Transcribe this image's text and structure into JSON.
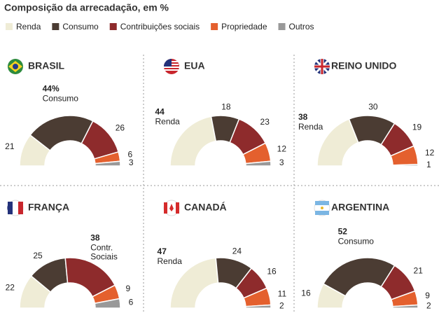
{
  "title": "Composição da arrecadação, em %",
  "chart_data": [
    {
      "type": "half-donut",
      "title": "BRASIL",
      "categories": [
        "Renda",
        "Consumo",
        "Contribuições sociais",
        "Propriedade",
        "Outros"
      ],
      "colors": [
        "#efecd6",
        "#4b3c33",
        "#8e2b2c",
        "#e4602e",
        "#999999"
      ],
      "values": [
        21,
        44,
        26,
        6,
        3
      ],
      "value_labels": [
        "21",
        "44%",
        "26",
        "6",
        "3"
      ],
      "highlight": 1
    },
    {
      "type": "half-donut",
      "title": "EUA",
      "categories": [
        "Renda",
        "Consumo",
        "Contribuições sociais",
        "Propriedade",
        "Outros"
      ],
      "colors": [
        "#efecd6",
        "#4b3c33",
        "#8e2b2c",
        "#e4602e",
        "#999999"
      ],
      "values": [
        44,
        18,
        23,
        12,
        3
      ],
      "highlight": 0
    },
    {
      "type": "half-donut",
      "title": "REINO UNIDO",
      "categories": [
        "Renda",
        "Consumo",
        "Contribuições sociais",
        "Propriedade",
        "Outros"
      ],
      "colors": [
        "#efecd6",
        "#4b3c33",
        "#8e2b2c",
        "#e4602e",
        "#999999"
      ],
      "values": [
        38,
        30,
        19,
        12,
        1
      ],
      "highlight": 0
    },
    {
      "type": "half-donut",
      "title": "FRANÇA",
      "categories": [
        "Renda",
        "Consumo",
        "Contribuições sociais",
        "Propriedade",
        "Outros"
      ],
      "colors": [
        "#efecd6",
        "#4b3c33",
        "#8e2b2c",
        "#e4602e",
        "#999999"
      ],
      "values": [
        22,
        25,
        38,
        9,
        6
      ],
      "highlight": 2,
      "callout_label": [
        "Contr.",
        "Sociais"
      ]
    },
    {
      "type": "half-donut",
      "title": "CANADÁ",
      "categories": [
        "Renda",
        "Consumo",
        "Contribuições sociais",
        "Propriedade",
        "Outros"
      ],
      "colors": [
        "#efecd6",
        "#4b3c33",
        "#8e2b2c",
        "#e4602e",
        "#999999"
      ],
      "values": [
        47,
        24,
        16,
        11,
        2
      ],
      "highlight": 0
    },
    {
      "type": "half-donut",
      "title": "ARGENTINA",
      "categories": [
        "Renda",
        "Consumo",
        "Contribuições sociais",
        "Propriedade",
        "Outros"
      ],
      "colors": [
        "#efecd6",
        "#4b3c33",
        "#8e2b2c",
        "#e4602e",
        "#999999"
      ],
      "values": [
        16,
        52,
        21,
        9,
        2
      ],
      "highlight": 1
    }
  ]
}
